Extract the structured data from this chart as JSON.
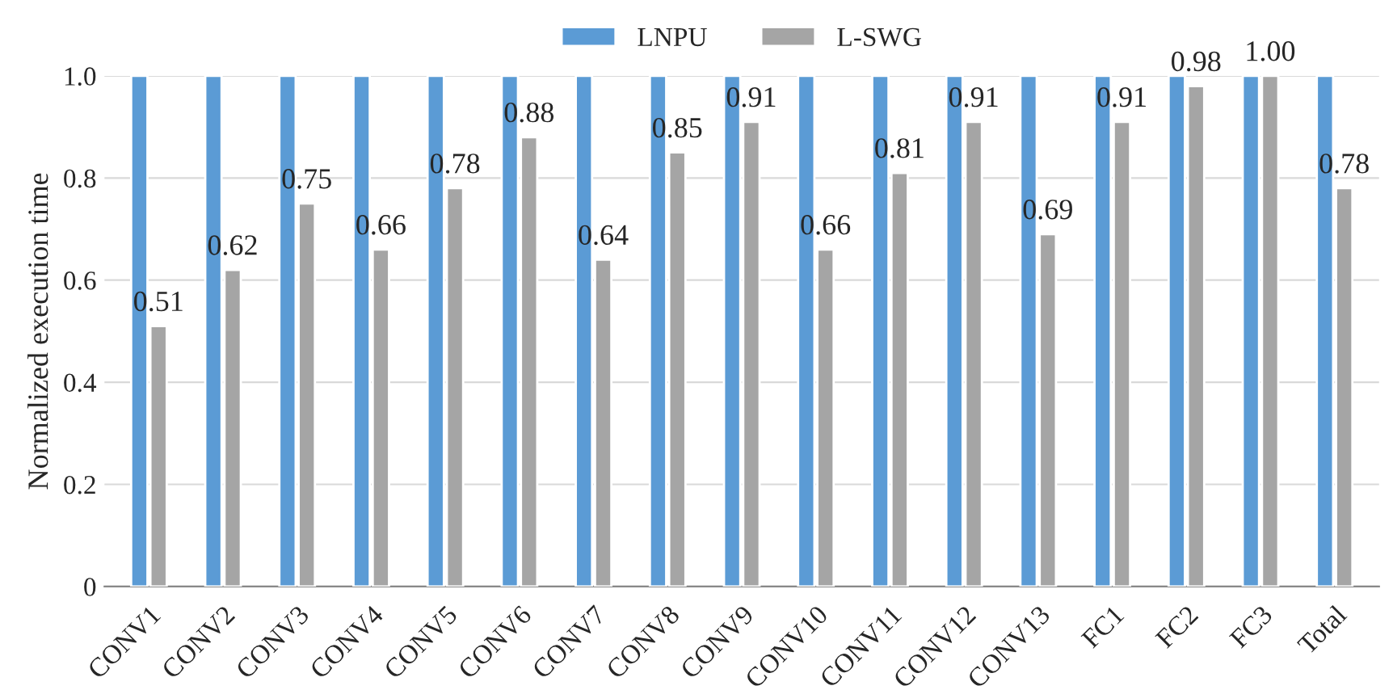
{
  "chart_data": {
    "type": "bar",
    "categories": [
      "CONV1",
      "CONV2",
      "CONV3",
      "CONV4",
      "CONV5",
      "CONV6",
      "CONV7",
      "CONV8",
      "CONV9",
      "CONV10",
      "CONV11",
      "CONV12",
      "CONV13",
      "FC1",
      "FC2",
      "FC3",
      "Total"
    ],
    "series": [
      {
        "name": "LNPU",
        "color": "#5b9bd5",
        "values": [
          1,
          1,
          1,
          1,
          1,
          1,
          1,
          1,
          1,
          1,
          1,
          1,
          1,
          1,
          1,
          1,
          1
        ]
      },
      {
        "name": "L-SWG",
        "color": "#a5a5a5",
        "values": [
          0.51,
          0.62,
          0.75,
          0.66,
          0.78,
          0.88,
          0.64,
          0.85,
          0.91,
          0.66,
          0.81,
          0.91,
          0.69,
          0.91,
          0.98,
          1.0,
          0.78
        ],
        "value_labels": [
          "0.51",
          "0.62",
          "0.75",
          "0.66",
          "0.78",
          "0.88",
          "0.64",
          "0.85",
          "0.91",
          "0.66",
          "0.81",
          "0.91",
          "0.69",
          "0.91",
          "0.98",
          "1.00",
          "0.78"
        ]
      }
    ],
    "ylabel": "Normalized execution time",
    "ylim": [
      0,
      1
    ],
    "yticks": [
      0,
      0.2,
      0.4,
      0.6,
      0.8,
      {
        "value": 1,
        "label": "1.0"
      }
    ],
    "grid": "y",
    "legend": "top"
  }
}
